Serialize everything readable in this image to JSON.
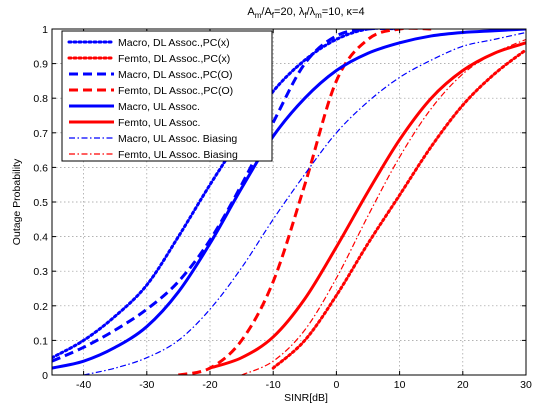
{
  "chart_data": {
    "type": "line",
    "title_parts": {
      "a_main": "A",
      "a_sub_m": "m",
      "slash": "/A",
      "a_sub_f": "f",
      "eq20": "=20, ",
      "lambda": "λ",
      "l_sub_f": "f",
      "slash_lambda": "/λ",
      "l_sub_m": "m",
      "eq10": "=10, κ=4"
    },
    "xlabel": "SINR[dB]",
    "ylabel": "Outage Probability",
    "xlim": [
      -45,
      30
    ],
    "ylim": [
      0,
      1
    ],
    "grid": true,
    "legend_position": "top-left",
    "x_ticks": [
      {
        "value": -40,
        "label": "-40"
      },
      {
        "value": -30,
        "label": "-30"
      },
      {
        "value": -20,
        "label": "-20"
      },
      {
        "value": -10,
        "label": "-10"
      },
      {
        "value": 0,
        "label": "0"
      },
      {
        "value": 10,
        "label": "10"
      },
      {
        "value": 20,
        "label": "20"
      },
      {
        "value": 30,
        "label": "30"
      }
    ],
    "y_ticks": [
      {
        "value": 0,
        "label": "0"
      },
      {
        "value": 0.1,
        "label": "0.1"
      },
      {
        "value": 0.2,
        "label": "0.2"
      },
      {
        "value": 0.3,
        "label": "0.3"
      },
      {
        "value": 0.4,
        "label": "0.4"
      },
      {
        "value": 0.5,
        "label": "0.5"
      },
      {
        "value": 0.6,
        "label": "0.6"
      },
      {
        "value": 0.7,
        "label": "0.7"
      },
      {
        "value": 0.8,
        "label": "0.8"
      },
      {
        "value": 0.9,
        "label": "0.9"
      },
      {
        "value": 1,
        "label": "1"
      }
    ],
    "series": [
      {
        "name": "Macro, DL Assoc.,PC(x)",
        "color": "#0000ff",
        "style": "dotted",
        "weight": "thick",
        "x": [
          -45,
          -40,
          -35,
          -30,
          -25,
          -20,
          -15,
          -10,
          -5,
          0,
          5,
          10
        ],
        "y": [
          0.05,
          0.1,
          0.17,
          0.26,
          0.4,
          0.55,
          0.69,
          0.82,
          0.91,
          0.97,
          1.0,
          1.0
        ]
      },
      {
        "name": "Femto, DL Assoc.,PC(x)",
        "color": "#ff0000",
        "style": "dotted",
        "weight": "thick",
        "x": [
          -10,
          -5,
          0,
          5,
          10,
          15,
          20,
          25,
          30
        ],
        "y": [
          0.02,
          0.1,
          0.23,
          0.38,
          0.52,
          0.66,
          0.78,
          0.87,
          0.94
        ]
      },
      {
        "name": "Macro, DL Assoc.,PC(O)",
        "color": "#0000ff",
        "style": "dashed",
        "weight": "thick",
        "x": [
          -45,
          -40,
          -35,
          -30,
          -25,
          -20,
          -15,
          -10,
          -5,
          0,
          5,
          10
        ],
        "y": [
          0.04,
          0.08,
          0.13,
          0.19,
          0.27,
          0.39,
          0.55,
          0.73,
          0.9,
          0.98,
          1.0,
          1.0
        ]
      },
      {
        "name": "Femto, DL Assoc.,PC(O)",
        "color": "#ff0000",
        "style": "dashed",
        "weight": "thick",
        "x": [
          -25,
          -20,
          -15,
          -10,
          -5,
          0,
          5,
          10,
          15
        ],
        "y": [
          0.0,
          0.02,
          0.1,
          0.27,
          0.55,
          0.85,
          0.97,
          1.0,
          1.0
        ]
      },
      {
        "name": "Macro, UL Assoc.",
        "color": "#0000ff",
        "style": "solid",
        "weight": "thick",
        "x": [
          -45,
          -40,
          -35,
          -30,
          -25,
          -20,
          -15,
          -10,
          -5,
          0,
          5,
          10,
          15,
          20,
          25,
          30
        ],
        "y": [
          0.02,
          0.04,
          0.08,
          0.14,
          0.24,
          0.38,
          0.54,
          0.69,
          0.8,
          0.88,
          0.93,
          0.96,
          0.98,
          0.99,
          0.995,
          1.0
        ]
      },
      {
        "name": "Femto, UL Assoc.",
        "color": "#ff0000",
        "style": "solid",
        "weight": "thick",
        "x": [
          -20,
          -15,
          -10,
          -5,
          0,
          5,
          10,
          15,
          20,
          25,
          30
        ],
        "y": [
          0.02,
          0.05,
          0.11,
          0.22,
          0.37,
          0.53,
          0.68,
          0.8,
          0.88,
          0.93,
          0.96
        ]
      },
      {
        "name": "Macro, UL Assoc. Biasing",
        "color": "#0000ff",
        "style": "dashdot",
        "weight": "thin",
        "x": [
          -40,
          -35,
          -30,
          -25,
          -20,
          -15,
          -10,
          -5,
          0,
          5,
          10,
          15,
          20,
          25,
          30
        ],
        "y": [
          0.0,
          0.02,
          0.05,
          0.1,
          0.19,
          0.31,
          0.45,
          0.58,
          0.7,
          0.79,
          0.86,
          0.91,
          0.95,
          0.97,
          0.99
        ]
      },
      {
        "name": "Femto, UL Assoc. Biasing",
        "color": "#ff0000",
        "style": "dashdot",
        "weight": "thin",
        "x": [
          -15,
          -10,
          -5,
          0,
          5,
          10,
          15,
          20,
          25,
          30
        ],
        "y": [
          0.0,
          0.04,
          0.13,
          0.28,
          0.46,
          0.63,
          0.77,
          0.87,
          0.93,
          0.97
        ]
      }
    ]
  }
}
